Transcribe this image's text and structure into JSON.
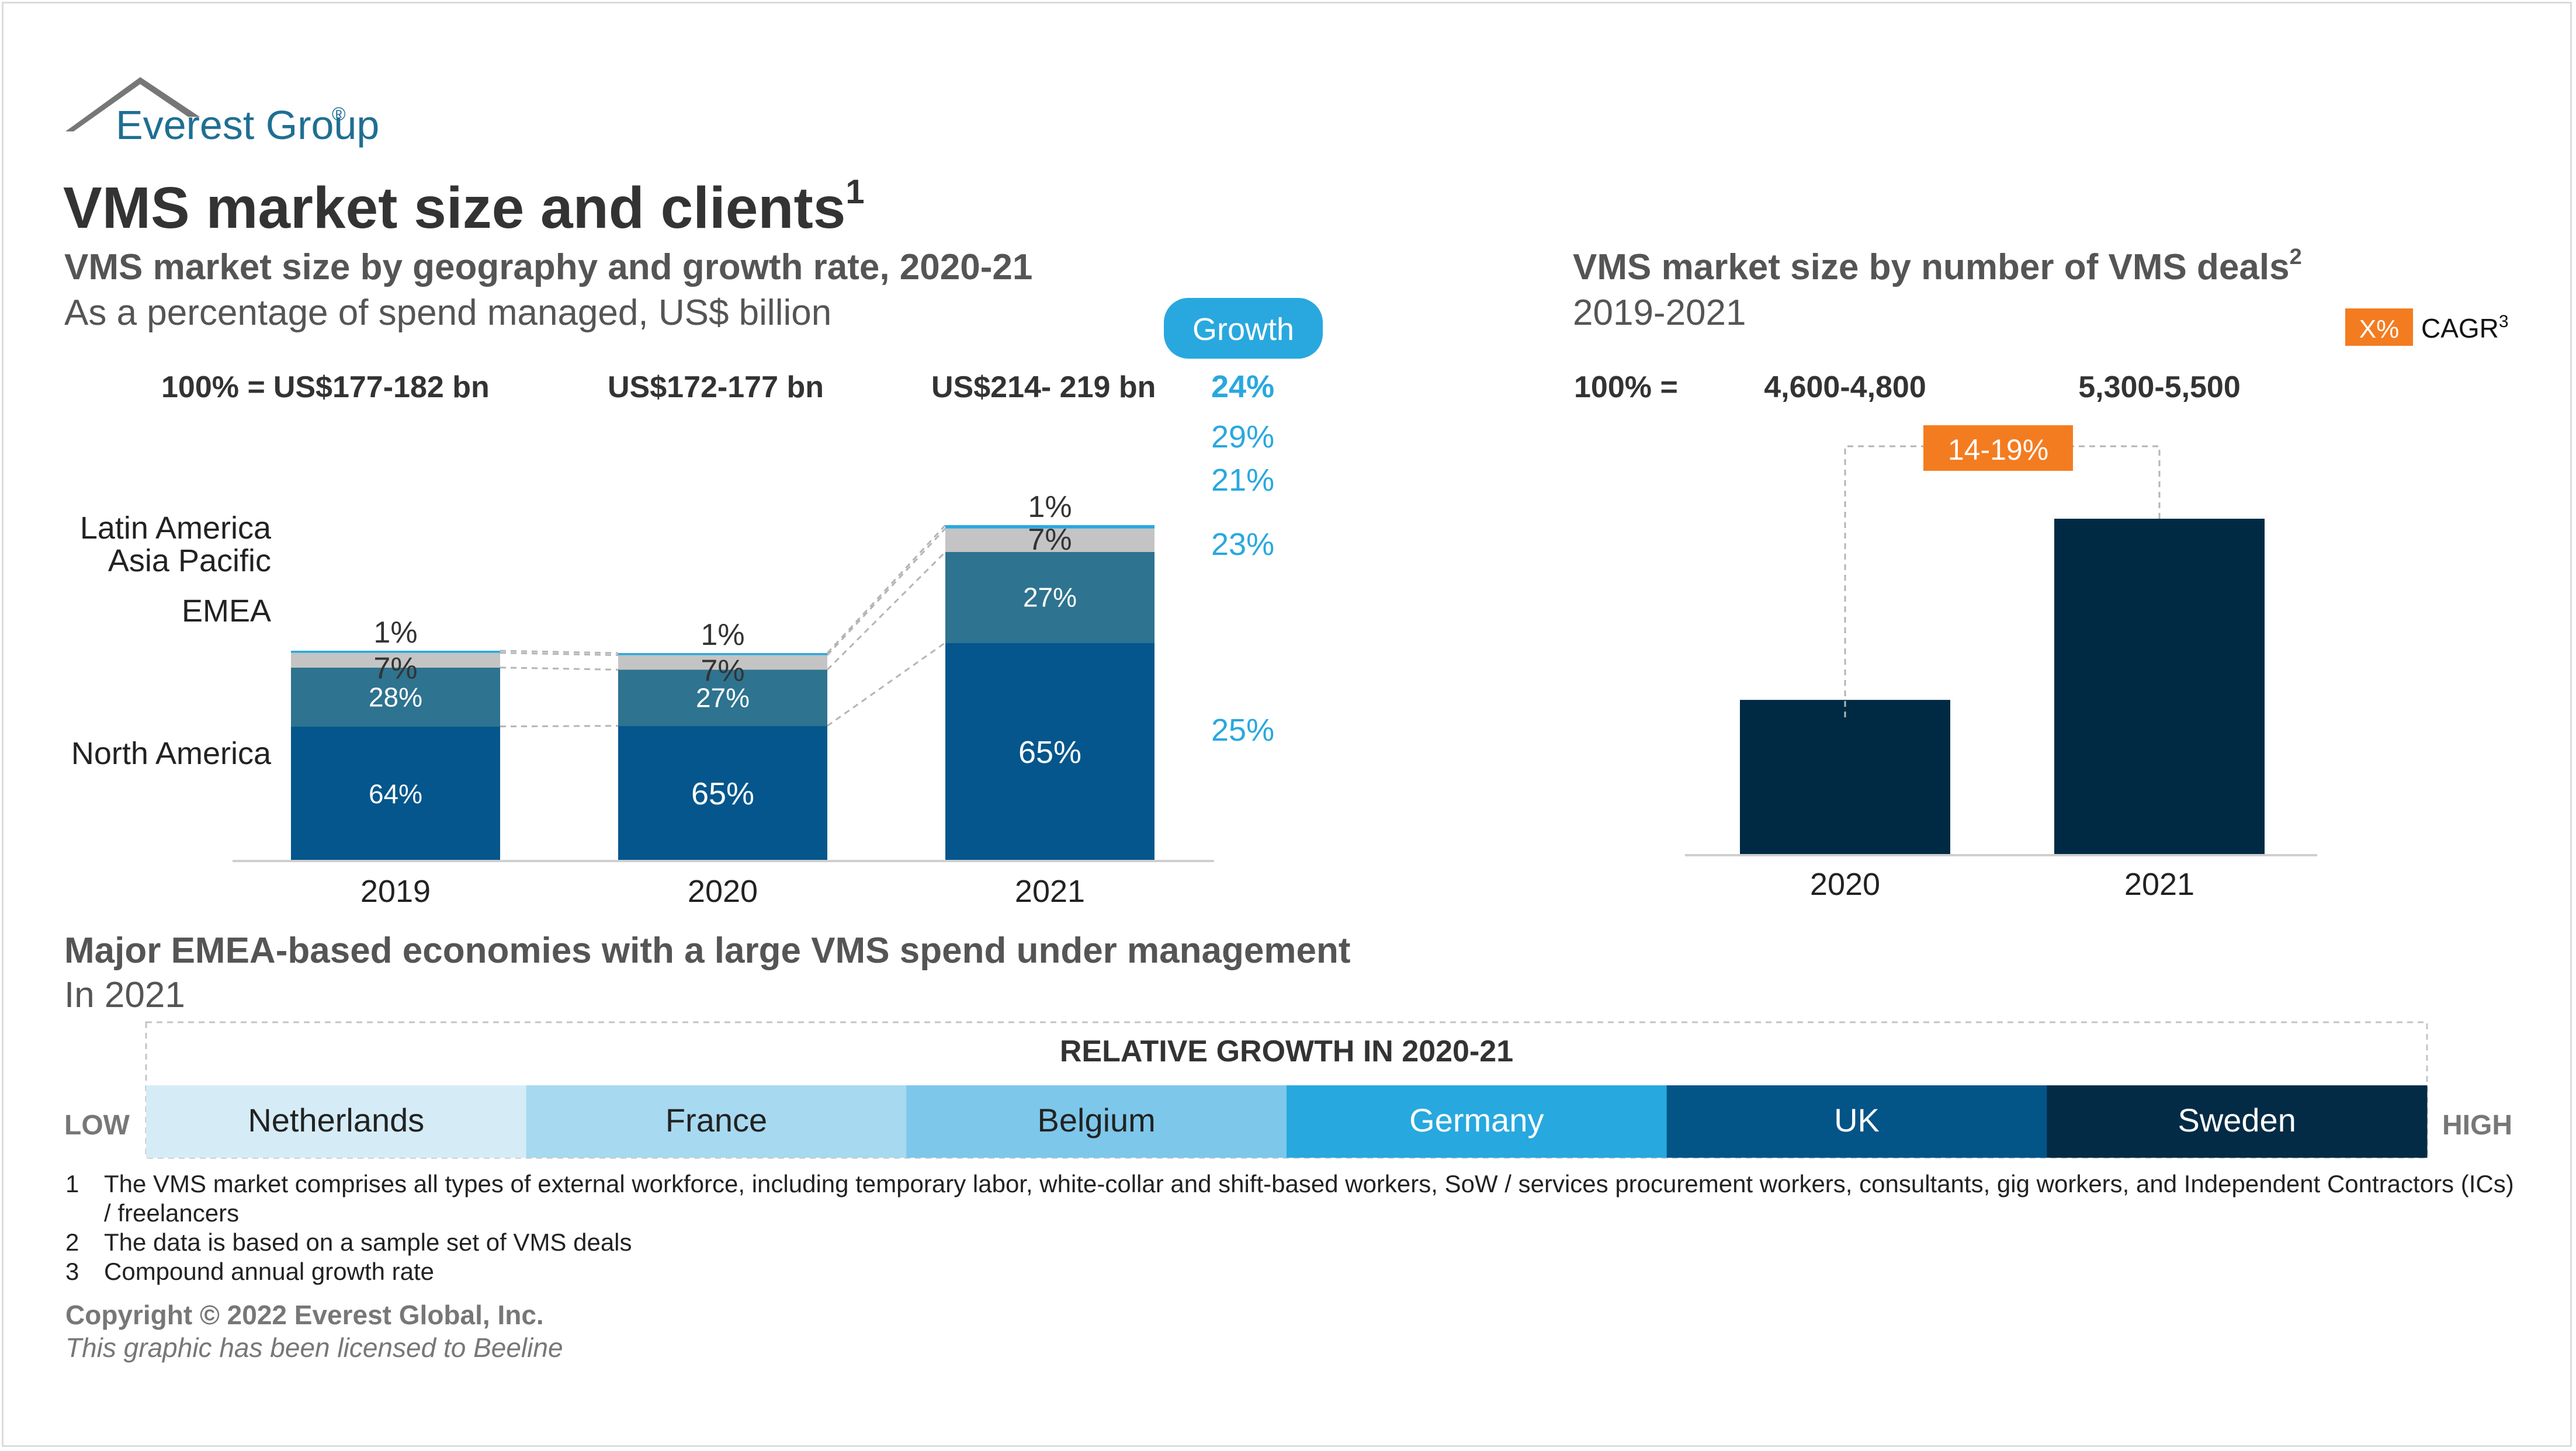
{
  "logo": {
    "text": "Everest Group",
    "mark": "®"
  },
  "title": {
    "text": "VMS market size and clients",
    "sup": "1"
  },
  "left_panel": {
    "heading": "VMS market size by geography and growth rate, 2020-21",
    "subheading": "As a percentage of spend managed, US$ billion",
    "growth_badge": "Growth",
    "totals_prefix": "100% =",
    "totals": [
      "US$177-182 bn",
      "US$172-177 bn",
      "US$214- 219 bn"
    ],
    "total_growth": "24%"
  },
  "chart_data": [
    {
      "type": "bar",
      "stacked": true,
      "categories": [
        "2019",
        "2020",
        "2021"
      ],
      "series": [
        {
          "name": "North America",
          "values": [
            64,
            65,
            65
          ],
          "labels": [
            "64%",
            "65%",
            "65%"
          ],
          "color": "#04568c"
        },
        {
          "name": "EMEA",
          "values": [
            28,
            27,
            27
          ],
          "labels": [
            "28%",
            "27%",
            "27%"
          ],
          "color": "#2e738f"
        },
        {
          "name": "Asia Pacific",
          "values": [
            7,
            7,
            7
          ],
          "labels": [
            "7%",
            "7%",
            "7%"
          ],
          "color": "#c4c4c4"
        },
        {
          "name": "Latin America",
          "values": [
            1,
            1,
            1
          ],
          "labels": [
            "1%",
            "1%",
            "1%"
          ],
          "color": "#29a8df"
        }
      ],
      "bar_scale": [
        360,
        356,
        575
      ],
      "growth": {
        "labels": [
          "29%",
          "21%",
          "23%",
          "25%"
        ],
        "series_order": [
          "Latin America",
          "Asia Pacific",
          "EMEA",
          "North America"
        ],
        "color": "#29a8df"
      }
    },
    {
      "type": "bar",
      "categories": [
        "2020",
        "2021"
      ],
      "values": [
        4700,
        5400
      ],
      "value_labels": [
        "4,600-4,800",
        "5,300-5,500"
      ],
      "totals_prefix": "100% =",
      "cagr": {
        "label": "14-19%",
        "legend_box": "X%",
        "legend_text": "CAGR",
        "legend_sup": "3",
        "color": "#f47c20"
      },
      "color": "#002a44"
    }
  ],
  "right_panel": {
    "heading": "VMS market size by number of VMS deals",
    "heading_sup": "2",
    "subheading": "2019-2021"
  },
  "emea": {
    "heading": "Major EMEA-based economies with a large VMS spend under management",
    "subheading": "In 2021",
    "scale_title": "RELATIVE GROWTH IN 2020-21",
    "low": "LOW",
    "high": "HIGH",
    "countries": [
      {
        "name": "Netherlands",
        "color": "#d5ecf7",
        "text_color": "#222222"
      },
      {
        "name": "France",
        "color": "#a7d9f0",
        "text_color": "#222222"
      },
      {
        "name": "Belgium",
        "color": "#7dc7ea",
        "text_color": "#222222"
      },
      {
        "name": "Germany",
        "color": "#27a8df",
        "text_color": "#ffffff"
      },
      {
        "name": "UK",
        "color": "#035487",
        "text_color": "#ffffff"
      },
      {
        "name": "Sweden",
        "color": "#032b45",
        "text_color": "#ffffff"
      }
    ]
  },
  "footnotes": [
    {
      "num": "1",
      "text": "The VMS market comprises all types of external workforce, including temporary labor, white-collar and shift-based workers, SoW / services procurement workers, consultants, gig workers, and Independent Contractors (ICs) / freelancers"
    },
    {
      "num": "2",
      "text": "The data is based on a sample set of VMS deals"
    },
    {
      "num": "3",
      "text": "Compound annual growth rate"
    }
  ],
  "copyright": "Copyright © 2022 Everest Global, Inc.",
  "license": "This graphic has been licensed to Beeline"
}
